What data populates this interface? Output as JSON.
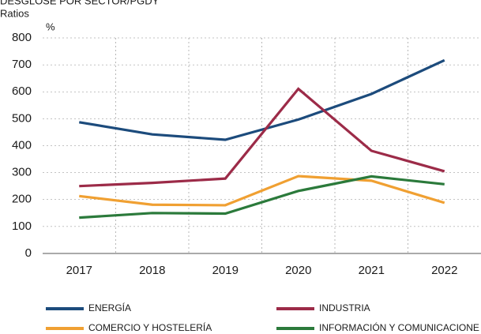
{
  "chart_data": {
    "type": "line",
    "title": "DESGLOSE POR SECTOR/PGDY",
    "subtitle": "Ratios",
    "y_label": "%",
    "categories": [
      "2017",
      "2018",
      "2019",
      "2020",
      "2021",
      "2022"
    ],
    "series": [
      {
        "name": "ENERGÍA",
        "color": "#1c4b7c",
        "values": [
          487,
          442,
          422,
          497,
          592,
          717
        ]
      },
      {
        "name": "INDUSTRIA",
        "color": "#9c2b48",
        "values": [
          250,
          262,
          278,
          611,
          381,
          305
        ]
      },
      {
        "name": "COMERCIO Y HOSTELERÍA",
        "color": "#f0a032",
        "values": [
          213,
          181,
          179,
          287,
          270,
          188
        ]
      },
      {
        "name": "INFORMACIÓN Y COMUNICACIONE",
        "color": "#2b7a3b",
        "values": [
          133,
          150,
          148,
          232,
          286,
          257
        ]
      }
    ],
    "ylim": [
      0,
      800
    ],
    "yticks": [
      0,
      100,
      200,
      300,
      400,
      500,
      600,
      700,
      800
    ],
    "grid": true
  }
}
